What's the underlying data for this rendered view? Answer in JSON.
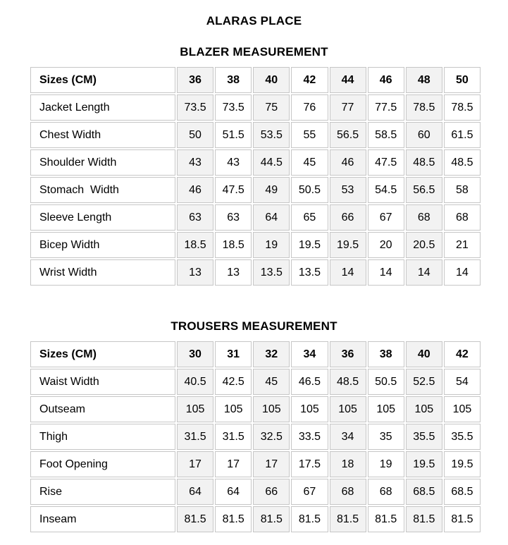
{
  "page": {
    "title": "ALARAS PLACE"
  },
  "colors": {
    "background": "#ffffff",
    "text": "#000000",
    "cell_border": "#c6c6c6",
    "shaded_column": "#f2f2f2"
  },
  "tables": [
    {
      "heading": "BLAZER MEASUREMENT",
      "header_label": "Sizes (CM)",
      "sizes": [
        "36",
        "38",
        "40",
        "42",
        "44",
        "46",
        "48",
        "50"
      ],
      "rows": [
        {
          "label": "Jacket Length",
          "values": [
            "73.5",
            "73.5",
            "75",
            "76",
            "77",
            "77.5",
            "78.5",
            "78.5"
          ]
        },
        {
          "label": "Chest Width",
          "values": [
            "50",
            "51.5",
            "53.5",
            "55",
            "56.5",
            "58.5",
            "60",
            "61.5"
          ]
        },
        {
          "label": "Shoulder Width",
          "values": [
            "43",
            "43",
            "44.5",
            "45",
            "46",
            "47.5",
            "48.5",
            "48.5"
          ]
        },
        {
          "label": "Stomach  Width",
          "values": [
            "46",
            "47.5",
            "49",
            "50.5",
            "53",
            "54.5",
            "56.5",
            "58"
          ]
        },
        {
          "label": "Sleeve Length",
          "values": [
            "63",
            "63",
            "64",
            "65",
            "66",
            "67",
            "68",
            "68"
          ]
        },
        {
          "label": "Bicep Width",
          "values": [
            "18.5",
            "18.5",
            "19",
            "19.5",
            "19.5",
            "20",
            "20.5",
            "21"
          ]
        },
        {
          "label": "Wrist Width",
          "values": [
            "13",
            "13",
            "13.5",
            "13.5",
            "14",
            "14",
            "14",
            "14"
          ]
        }
      ]
    },
    {
      "heading": "TROUSERS MEASUREMENT",
      "header_label": "Sizes (CM)",
      "sizes": [
        "30",
        "31",
        "32",
        "34",
        "36",
        "38",
        "40",
        "42"
      ],
      "rows": [
        {
          "label": "Waist Width",
          "values": [
            "40.5",
            "42.5",
            "45",
            "46.5",
            "48.5",
            "50.5",
            "52.5",
            "54"
          ]
        },
        {
          "label": "Outseam",
          "values": [
            "105",
            "105",
            "105",
            "105",
            "105",
            "105",
            "105",
            "105"
          ]
        },
        {
          "label": "Thigh",
          "values": [
            "31.5",
            "31.5",
            "32.5",
            "33.5",
            "34",
            "35",
            "35.5",
            "35.5"
          ]
        },
        {
          "label": "Foot Opening",
          "values": [
            "17",
            "17",
            "17",
            "17.5",
            "18",
            "19",
            "19.5",
            "19.5"
          ]
        },
        {
          "label": "Rise",
          "values": [
            "64",
            "64",
            "66",
            "67",
            "68",
            "68",
            "68.5",
            "68.5"
          ]
        },
        {
          "label": "Inseam",
          "values": [
            "81.5",
            "81.5",
            "81.5",
            "81.5",
            "81.5",
            "81.5",
            "81.5",
            "81.5"
          ]
        }
      ]
    }
  ]
}
